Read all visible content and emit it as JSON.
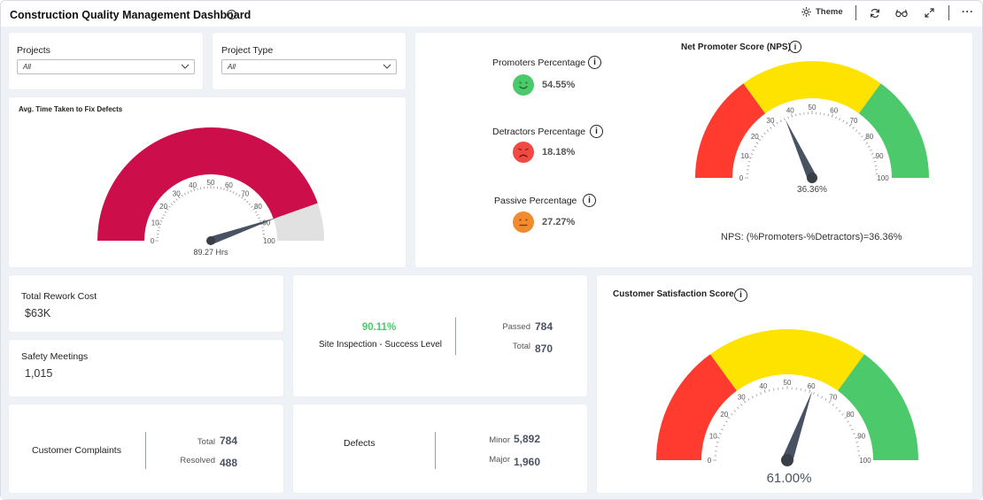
{
  "header": {
    "title": "Construction Quality Management Dashboard",
    "theme_label": "Theme"
  },
  "filters": {
    "projects": {
      "label": "Projects",
      "value": "All"
    },
    "project_type": {
      "label": "Project Type",
      "value": "All"
    }
  },
  "avg_time": {
    "title": "Avg. Time Taken to Fix Defects",
    "value": 89.27,
    "value_label": "89.27 Hrs",
    "min": 0,
    "max": 100,
    "ticks": [
      "0",
      "10",
      "20",
      "30",
      "40",
      "50",
      "60",
      "70",
      "80",
      "90",
      "100"
    ],
    "fill_color": "#cc0e4b",
    "track_color": "#e1e1e1"
  },
  "percentages": {
    "promoters": {
      "label": "Promoters Percentage",
      "value": "54.55%",
      "color": "#4cc96a"
    },
    "detractors": {
      "label": "Detractors Percentage",
      "value": "18.18%",
      "color": "#f04a45"
    },
    "passive": {
      "label": "Passive Percentage",
      "value": "27.27%",
      "color": "#f28a2e"
    }
  },
  "nps": {
    "title": "Net Promoter Score (NPS)",
    "value": 36.36,
    "value_label": "36.36%",
    "ticks": [
      "0",
      "10",
      "20",
      "30",
      "40",
      "50",
      "60",
      "70",
      "80",
      "90",
      "100"
    ],
    "formula": "NPS: (%Promoters-%Detractors)=36.36%",
    "bands": [
      {
        "from": 0,
        "to": 30,
        "color": "#ff3b2f"
      },
      {
        "from": 30,
        "to": 70,
        "color": "#ffe300"
      },
      {
        "from": 70,
        "to": 100,
        "color": "#4cc96a"
      }
    ]
  },
  "rework": {
    "label": "Total Rework Cost",
    "value": "$63K"
  },
  "safety": {
    "label": "Safety Meetings",
    "value": "1,015"
  },
  "inspection": {
    "percent": "90.11%",
    "label": "Site Inspection - Success Level",
    "passed_label": "Passed",
    "passed_value": "784",
    "total_label": "Total",
    "total_value": "870",
    "percent_color": "#4cc96a"
  },
  "complaints": {
    "label": "Customer Complaints",
    "total_label": "Total",
    "total_value": "784",
    "resolved_label": "Resolved",
    "resolved_value": "488"
  },
  "defects": {
    "label": "Defects",
    "minor_label": "Minor",
    "minor_value": "5,892",
    "major_label": "Major",
    "major_value": "1,960"
  },
  "csat": {
    "title": "Customer Satisfaction Score",
    "value": 61,
    "value_label": "61.00%",
    "ticks": [
      "0",
      "10",
      "20",
      "30",
      "40",
      "50",
      "60",
      "70",
      "80",
      "90",
      "100"
    ],
    "bands": [
      {
        "from": 0,
        "to": 30,
        "color": "#ff3b2f"
      },
      {
        "from": 30,
        "to": 70,
        "color": "#ffe300"
      },
      {
        "from": 70,
        "to": 100,
        "color": "#4cc96a"
      }
    ]
  }
}
